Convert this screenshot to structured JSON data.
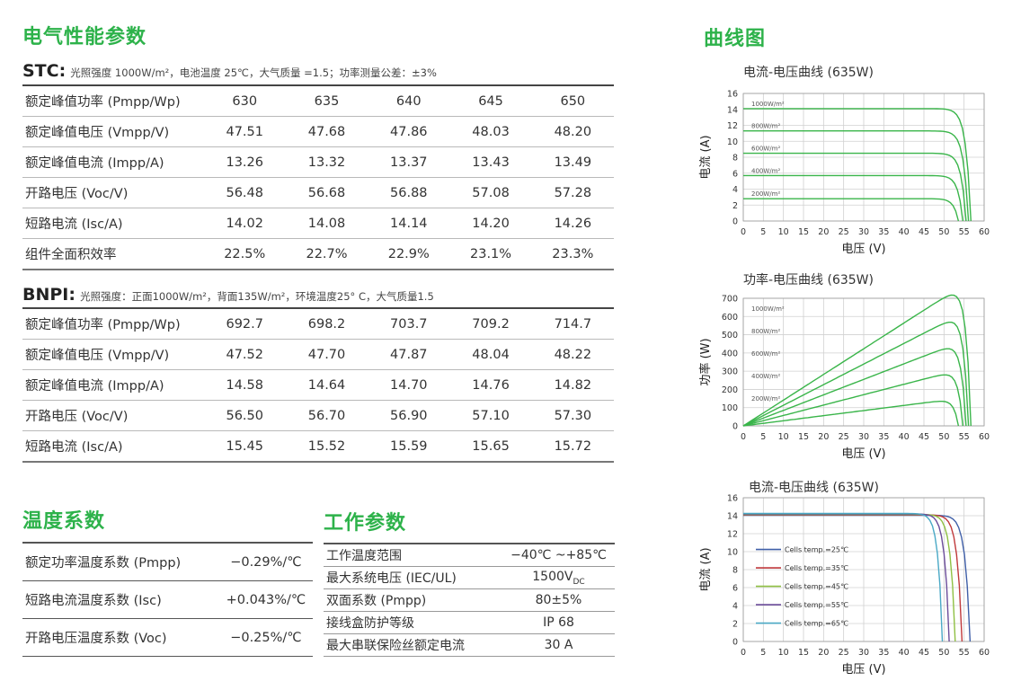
{
  "electrical": {
    "title": "电气性能参数",
    "stc": {
      "head": "STC:",
      "note": "光照强度 1000W/m²，电池温度 25℃，大气质量 =1.5；功率测量公差：±3%",
      "rows": [
        {
          "label": "额定峰值功率 (Pmpp/Wp)",
          "values": [
            "630",
            "635",
            "640",
            "645",
            "650"
          ]
        },
        {
          "label": "额定峰值电压 (Vmpp/V)",
          "values": [
            "47.51",
            "47.68",
            "47.86",
            "48.03",
            "48.20"
          ]
        },
        {
          "label": "额定峰值电流 (Impp/A)",
          "values": [
            "13.26",
            "13.32",
            "13.37",
            "13.43",
            "13.49"
          ]
        },
        {
          "label": "开路电压 (Voc/V)",
          "values": [
            "56.48",
            "56.68",
            "56.88",
            "57.08",
            "57.28"
          ]
        },
        {
          "label": "短路电流 (Isc/A)",
          "values": [
            "14.02",
            "14.08",
            "14.14",
            "14.20",
            "14.26"
          ]
        },
        {
          "label": "组件全面积效率",
          "values": [
            "22.5%",
            "22.7%",
            "22.9%",
            "23.1%",
            "23.3%"
          ]
        }
      ]
    },
    "bnpi": {
      "head": "BNPI:",
      "note": "光照强度：正面1000W/m²，背面135W/m²，环境温度25° C，大气质量1.5",
      "rows": [
        {
          "label": "额定峰值功率 (Pmpp/Wp)",
          "values": [
            "692.7",
            "698.2",
            "703.7",
            "709.2",
            "714.7"
          ]
        },
        {
          "label": "额定峰值电压 (Vmpp/V)",
          "values": [
            "47.52",
            "47.70",
            "47.87",
            "48.04",
            "48.22"
          ]
        },
        {
          "label": "额定峰值电流 (Impp/A)",
          "values": [
            "14.58",
            "14.64",
            "14.70",
            "14.76",
            "14.82"
          ]
        },
        {
          "label": "开路电压 (Voc/V)",
          "values": [
            "56.50",
            "56.70",
            "56.90",
            "57.10",
            "57.30"
          ]
        },
        {
          "label": "短路电流 (Isc/A)",
          "values": [
            "15.45",
            "15.52",
            "15.59",
            "15.65",
            "15.72"
          ]
        }
      ]
    }
  },
  "temperature": {
    "title": "温度系数",
    "rows": [
      {
        "label": "额定功率温度系数 (Pmpp)",
        "value": "−0.29%/℃"
      },
      {
        "label": "短路电流温度系数 (Isc)",
        "value": "+0.043%/℃"
      },
      {
        "label": "开路电压温度系数 (Voc)",
        "value": "−0.25%/℃"
      }
    ]
  },
  "operating": {
    "title": "工作参数",
    "rows": [
      {
        "label": "工作温度范围",
        "value": "−40℃ ~+85℃"
      },
      {
        "label": "最大系统电压 (IEC/UL)",
        "value": "1500V",
        "sub": "DC"
      },
      {
        "label": "双面系数 (Pmpp)",
        "value": "80±5%"
      },
      {
        "label": "接线盒防护等级",
        "value": "IP 68"
      },
      {
        "label": "最大串联保险丝额定电流",
        "value": "30 A"
      }
    ]
  },
  "curves": {
    "title": "曲线图",
    "colors": {
      "green": "#3ab54a",
      "grid": "#d0d0d0",
      "axis": "#999999"
    }
  },
  "chart_data": [
    {
      "type": "line",
      "title": "电流-电压曲线 (635W)",
      "xlabel": "电压 (V)",
      "ylabel": "电流 (A)",
      "xlim": [
        0,
        60
      ],
      "ylim": [
        0,
        16
      ],
      "xticks": [
        0,
        5,
        10,
        15,
        20,
        25,
        30,
        35,
        40,
        45,
        50,
        55,
        60
      ],
      "yticks": [
        0,
        2,
        4,
        6,
        8,
        10,
        12,
        14,
        16
      ],
      "grid": true,
      "series": [
        {
          "name": "1000W/m²",
          "isc": 14.1,
          "voc": 56.7
        },
        {
          "name": "800W/m²",
          "isc": 11.3,
          "voc": 56.1
        },
        {
          "name": "600W/m²",
          "isc": 8.5,
          "voc": 55.5
        },
        {
          "name": "400W/m²",
          "isc": 5.7,
          "voc": 54.7
        },
        {
          "name": "200W/m²",
          "isc": 2.8,
          "voc": 53.6
        }
      ]
    },
    {
      "type": "line",
      "title": "功率-电压曲线 (635W)",
      "xlabel": "电压 (V)",
      "ylabel": "功率 (W)",
      "xlim": [
        0,
        60
      ],
      "ylim": [
        0,
        700
      ],
      "xticks": [
        0,
        5,
        10,
        15,
        20,
        25,
        30,
        35,
        40,
        45,
        50,
        55,
        60
      ],
      "yticks": [
        0,
        100,
        200,
        300,
        400,
        500,
        600,
        700
      ],
      "grid": true,
      "series": [
        {
          "name": "1000W/m²",
          "isc": 14.1,
          "voc": 56.7
        },
        {
          "name": "800W/m²",
          "isc": 11.3,
          "voc": 56.1
        },
        {
          "name": "600W/m²",
          "isc": 8.5,
          "voc": 55.5
        },
        {
          "name": "400W/m²",
          "isc": 5.7,
          "voc": 54.7
        },
        {
          "name": "200W/m²",
          "isc": 2.8,
          "voc": 53.6
        }
      ]
    },
    {
      "type": "line",
      "title": "电流-电压曲线 (635W)",
      "xlabel": "电压 (V)",
      "ylabel": "电流 (A)",
      "xlim": [
        0,
        60
      ],
      "ylim": [
        0,
        16
      ],
      "xticks": [
        0,
        5,
        10,
        15,
        20,
        25,
        30,
        35,
        40,
        45,
        50,
        55,
        60
      ],
      "yticks": [
        0,
        2,
        4,
        6,
        8,
        10,
        12,
        14,
        16
      ],
      "grid": true,
      "series": [
        {
          "name": "Cells temp.=25℃",
          "color": "#3f5fa8",
          "isc": 14.05,
          "voc": 56.5
        },
        {
          "name": "Cells temp.=35℃",
          "color": "#c0393b",
          "isc": 14.1,
          "voc": 54.5
        },
        {
          "name": "Cells temp.=45℃",
          "color": "#8fc043",
          "isc": 14.15,
          "voc": 52.8
        },
        {
          "name": "Cells temp.=55℃",
          "color": "#6b4c9a",
          "isc": 14.2,
          "voc": 51.3
        },
        {
          "name": "Cells temp.=65℃",
          "color": "#4aa9c6",
          "isc": 14.25,
          "voc": 49.6
        }
      ]
    }
  ]
}
